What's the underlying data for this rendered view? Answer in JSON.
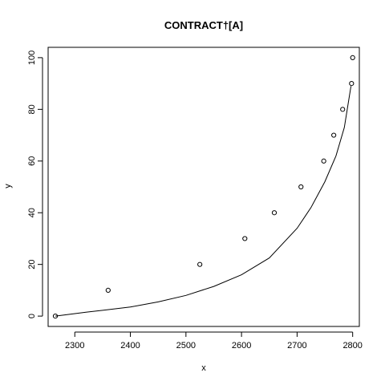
{
  "chart_data": {
    "type": "scatter",
    "title": "CONTRACT†[A]",
    "xlabel": "x",
    "ylabel": "y",
    "xlim": [
      2252,
      2812
    ],
    "ylim": [
      -4,
      104
    ],
    "x_ticks": [
      2300,
      2400,
      2500,
      2600,
      2700,
      2800
    ],
    "y_ticks": [
      0,
      20,
      40,
      60,
      80,
      100
    ],
    "grid": false,
    "series": [
      {
        "points": [
          {
            "x": 2265,
            "y": 0
          },
          {
            "x": 2360,
            "y": 10
          },
          {
            "x": 2525,
            "y": 20
          },
          {
            "x": 2606,
            "y": 30
          },
          {
            "x": 2659,
            "y": 40
          },
          {
            "x": 2707,
            "y": 50
          },
          {
            "x": 2748,
            "y": 60
          },
          {
            "x": 2766,
            "y": 70
          },
          {
            "x": 2782,
            "y": 80
          },
          {
            "x": 2798,
            "y": 90
          },
          {
            "x": 2800,
            "y": 100
          }
        ]
      }
    ],
    "fit_curve": {
      "points": [
        {
          "x": 2265,
          "y": 0
        },
        {
          "x": 2320,
          "y": 1.5
        },
        {
          "x": 2400,
          "y": 3.5
        },
        {
          "x": 2450,
          "y": 5.5
        },
        {
          "x": 2500,
          "y": 8
        },
        {
          "x": 2550,
          "y": 11.5
        },
        {
          "x": 2600,
          "y": 16
        },
        {
          "x": 2650,
          "y": 22.5
        },
        {
          "x": 2700,
          "y": 34
        },
        {
          "x": 2725,
          "y": 42
        },
        {
          "x": 2750,
          "y": 52
        },
        {
          "x": 2770,
          "y": 62
        },
        {
          "x": 2785,
          "y": 73
        },
        {
          "x": 2797,
          "y": 89
        }
      ]
    }
  }
}
